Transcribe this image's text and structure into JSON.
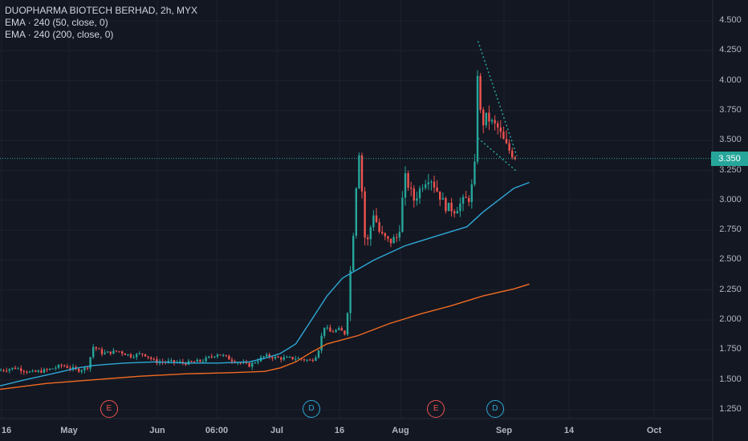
{
  "legend": {
    "title": "DUOPHARMA BIOTECH BERHAD, 2h, MYX",
    "ema1": "EMA · 240 (50, close, 0)",
    "ema2": "EMA · 240 (200, close, 0)"
  },
  "last_price_label": "3.350",
  "colors": {
    "background": "#131722",
    "grid": "#1e222d",
    "up": "#26a69a",
    "down": "#ef5350",
    "ema50": "#2ea8d6",
    "ema200": "#f26b21",
    "trendline": "#26a69a"
  },
  "chart_data": {
    "type": "candlestick",
    "symbol": "DUOPHARMA BIOTECH BERHAD",
    "interval": "2h",
    "exchange": "MYX",
    "y_ticks": [
      "4.500",
      "4.250",
      "4.000",
      "3.750",
      "3.500",
      "3.250",
      "3.000",
      "2.750",
      "2.500",
      "2.250",
      "2.000",
      "1.750",
      "1.500",
      "1.250"
    ],
    "x_ticks": [
      "16",
      "May",
      "Jun",
      "06:00",
      "Jul",
      "16",
      "Aug",
      "Sep",
      "14",
      "Oct"
    ],
    "last_price": 3.35,
    "series": [
      {
        "name": "EMA · 240 (50, close, 0)",
        "color": "#2ea8d6",
        "points": [
          [
            0,
            1.45
          ],
          [
            0.08,
            1.5
          ],
          [
            0.15,
            1.54
          ],
          [
            0.25,
            1.6
          ],
          [
            0.3,
            1.62
          ],
          [
            0.4,
            1.64
          ],
          [
            0.5,
            1.65
          ],
          [
            0.6,
            1.64
          ],
          [
            0.7,
            1.64
          ],
          [
            0.8,
            1.65
          ],
          [
            0.85,
            1.68
          ],
          [
            0.9,
            1.72
          ],
          [
            0.95,
            1.8
          ],
          [
            1.0,
            2.0
          ],
          [
            1.05,
            2.2
          ],
          [
            1.1,
            2.35
          ],
          [
            1.2,
            2.5
          ],
          [
            1.3,
            2.62
          ],
          [
            1.4,
            2.7
          ],
          [
            1.5,
            2.78
          ],
          [
            1.55,
            2.9
          ],
          [
            1.6,
            3.0
          ],
          [
            1.65,
            3.1
          ],
          [
            1.7,
            3.15
          ]
        ]
      },
      {
        "name": "EMA · 240 (200, close, 0)",
        "color": "#f26b21",
        "points": [
          [
            0,
            1.42
          ],
          [
            0.15,
            1.47
          ],
          [
            0.3,
            1.5
          ],
          [
            0.45,
            1.53
          ],
          [
            0.6,
            1.55
          ],
          [
            0.75,
            1.56
          ],
          [
            0.85,
            1.57
          ],
          [
            0.9,
            1.6
          ],
          [
            0.95,
            1.65
          ],
          [
            1.0,
            1.73
          ],
          [
            1.05,
            1.8
          ],
          [
            1.15,
            1.87
          ],
          [
            1.25,
            1.97
          ],
          [
            1.35,
            2.05
          ],
          [
            1.45,
            2.12
          ],
          [
            1.55,
            2.2
          ],
          [
            1.65,
            2.26
          ],
          [
            1.7,
            2.3
          ]
        ]
      }
    ],
    "trendlines": [
      {
        "from": [
          1.535,
          4.33
        ],
        "to": [
          1.66,
          3.37
        ]
      },
      {
        "from": [
          1.535,
          3.52
        ],
        "to": [
          1.66,
          3.24
        ]
      }
    ],
    "events": [
      {
        "label": "E",
        "time": 0.35,
        "color": "#ef5350"
      },
      {
        "label": "D",
        "time": 1.0,
        "color": "#2ea8d6"
      },
      {
        "label": "E",
        "time": 1.4,
        "color": "#ef5350"
      },
      {
        "label": "D",
        "time": 1.59,
        "color": "#2ea8d6"
      }
    ],
    "price_path": [
      [
        0,
        1.58
      ],
      [
        0.05,
        1.6
      ],
      [
        0.1,
        1.56
      ],
      [
        0.15,
        1.58
      ],
      [
        0.2,
        1.62
      ],
      [
        0.25,
        1.58
      ],
      [
        0.28,
        1.6
      ],
      [
        0.3,
        1.78
      ],
      [
        0.33,
        1.72
      ],
      [
        0.38,
        1.74
      ],
      [
        0.42,
        1.7
      ],
      [
        0.46,
        1.72
      ],
      [
        0.5,
        1.65
      ],
      [
        0.55,
        1.65
      ],
      [
        0.6,
        1.64
      ],
      [
        0.65,
        1.66
      ],
      [
        0.7,
        1.72
      ],
      [
        0.75,
        1.66
      ],
      [
        0.8,
        1.62
      ],
      [
        0.85,
        1.7
      ],
      [
        0.9,
        1.68
      ],
      [
        0.95,
        1.68
      ],
      [
        1.0,
        1.66
      ],
      [
        1.02,
        1.72
      ],
      [
        1.04,
        1.95
      ],
      [
        1.06,
        1.9
      ],
      [
        1.09,
        1.92
      ],
      [
        1.11,
        1.88
      ],
      [
        1.12,
        2.2
      ],
      [
        1.13,
        2.6
      ],
      [
        1.14,
        2.9
      ],
      [
        1.15,
        3.5
      ],
      [
        1.16,
        3.2
      ],
      [
        1.17,
        2.7
      ],
      [
        1.18,
        2.65
      ],
      [
        1.2,
        2.9
      ],
      [
        1.22,
        2.72
      ],
      [
        1.25,
        2.65
      ],
      [
        1.28,
        2.7
      ],
      [
        1.3,
        3.2
      ],
      [
        1.33,
        3.0
      ],
      [
        1.36,
        3.15
      ],
      [
        1.38,
        3.2
      ],
      [
        1.4,
        3.1
      ],
      [
        1.43,
        2.95
      ],
      [
        1.46,
        2.92
      ],
      [
        1.49,
        3.0
      ],
      [
        1.51,
        3.02
      ],
      [
        1.525,
        3.3
      ],
      [
        1.535,
        4.2
      ],
      [
        1.545,
        3.6
      ],
      [
        1.56,
        3.7
      ],
      [
        1.58,
        3.65
      ],
      [
        1.6,
        3.6
      ],
      [
        1.62,
        3.48
      ],
      [
        1.64,
        3.4
      ],
      [
        1.66,
        3.35
      ]
    ]
  }
}
